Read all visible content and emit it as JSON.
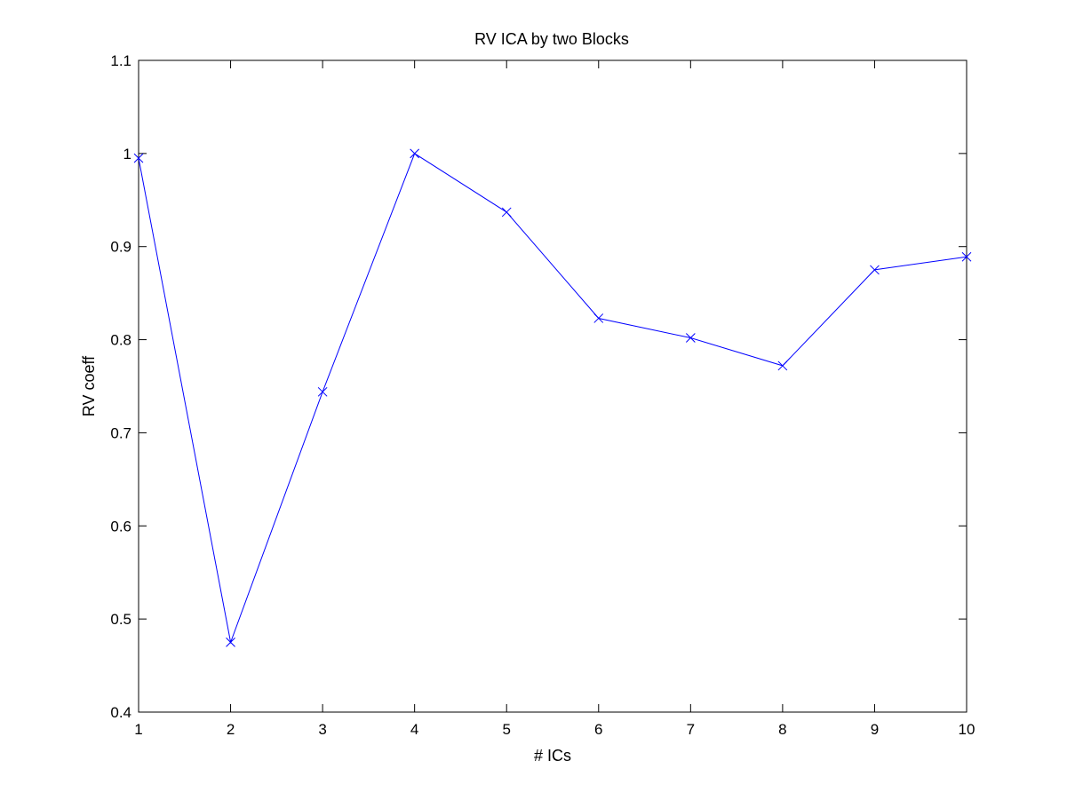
{
  "chart_data": {
    "type": "line",
    "title": "RV ICA by two Blocks",
    "xlabel": "# ICs",
    "ylabel": "RV coeff",
    "xlim": [
      1,
      10
    ],
    "ylim": [
      0.4,
      1.1
    ],
    "xticks": [
      1,
      2,
      3,
      4,
      5,
      6,
      7,
      8,
      9,
      10
    ],
    "yticks": [
      0.4,
      0.5,
      0.6,
      0.7,
      0.8,
      0.9,
      1.0,
      1.1
    ],
    "ytick_labels": [
      "0.4",
      "0.5",
      "0.6",
      "0.7",
      "0.8",
      "0.9",
      "1",
      "1.1"
    ],
    "grid": false,
    "marker": "x",
    "color": "#0000ff",
    "series": [
      {
        "x": [
          1,
          2,
          3,
          4,
          5,
          6,
          7,
          8,
          9,
          10
        ],
        "values": [
          0.995,
          0.475,
          0.744,
          1.0,
          0.937,
          0.823,
          0.802,
          0.772,
          0.875,
          0.889
        ]
      }
    ]
  }
}
